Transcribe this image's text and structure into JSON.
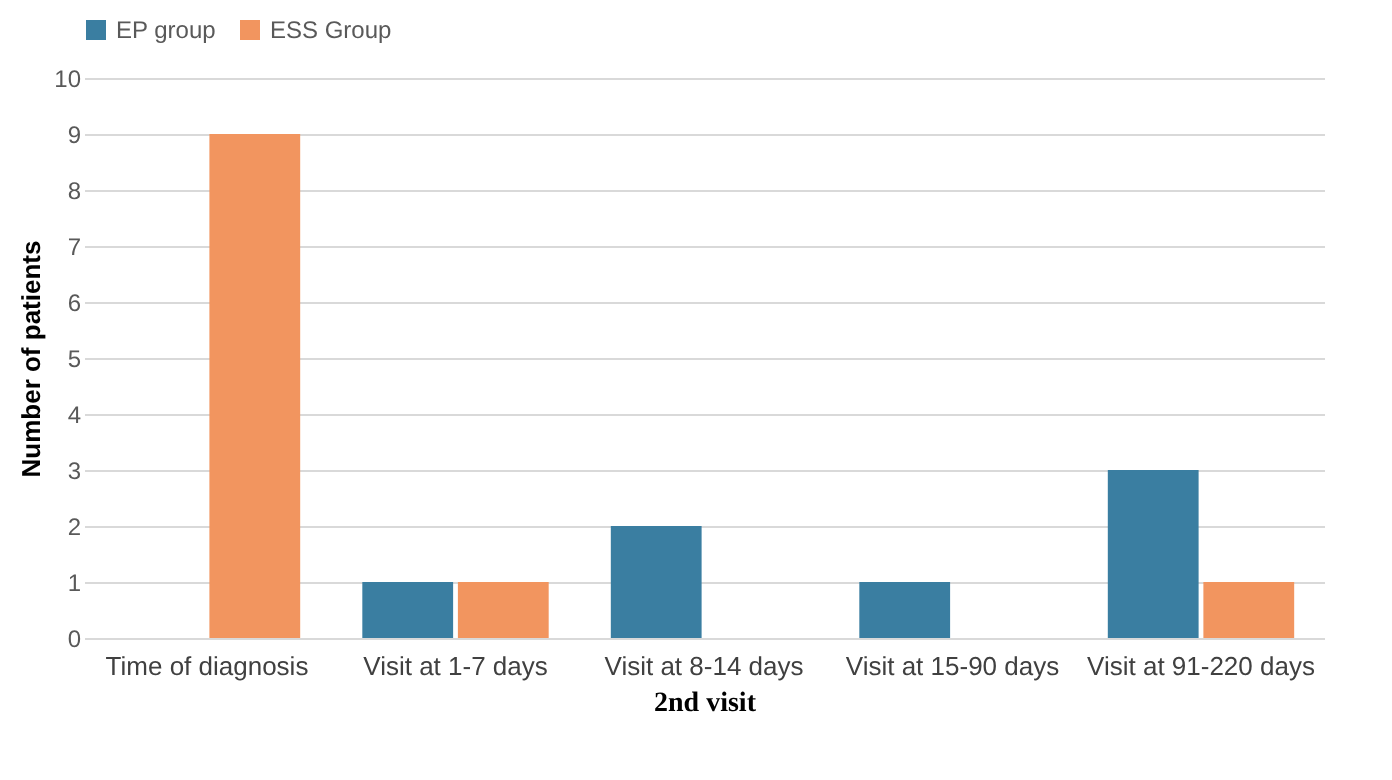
{
  "chart_data": {
    "type": "bar",
    "xlabel": "2nd visit",
    "ylabel": "Number of patients",
    "categories": [
      "Time of diagnosis",
      "Visit at 1-7 days",
      "Visit at 8-14 days",
      "Visit at 15-90 days",
      "Visit at 91-220 days"
    ],
    "series": [
      {
        "name": "EP group",
        "color": "#3a7ea1",
        "values": [
          0,
          1,
          2,
          1,
          3
        ]
      },
      {
        "name": "ESS Group",
        "color": "#f2955f",
        "values": [
          9,
          1,
          0,
          0,
          1
        ]
      }
    ],
    "ylim": [
      0,
      10
    ],
    "yticks": [
      0,
      1,
      2,
      3,
      4,
      5,
      6,
      7,
      8,
      9,
      10
    ],
    "grid": "y",
    "legend": "top"
  }
}
